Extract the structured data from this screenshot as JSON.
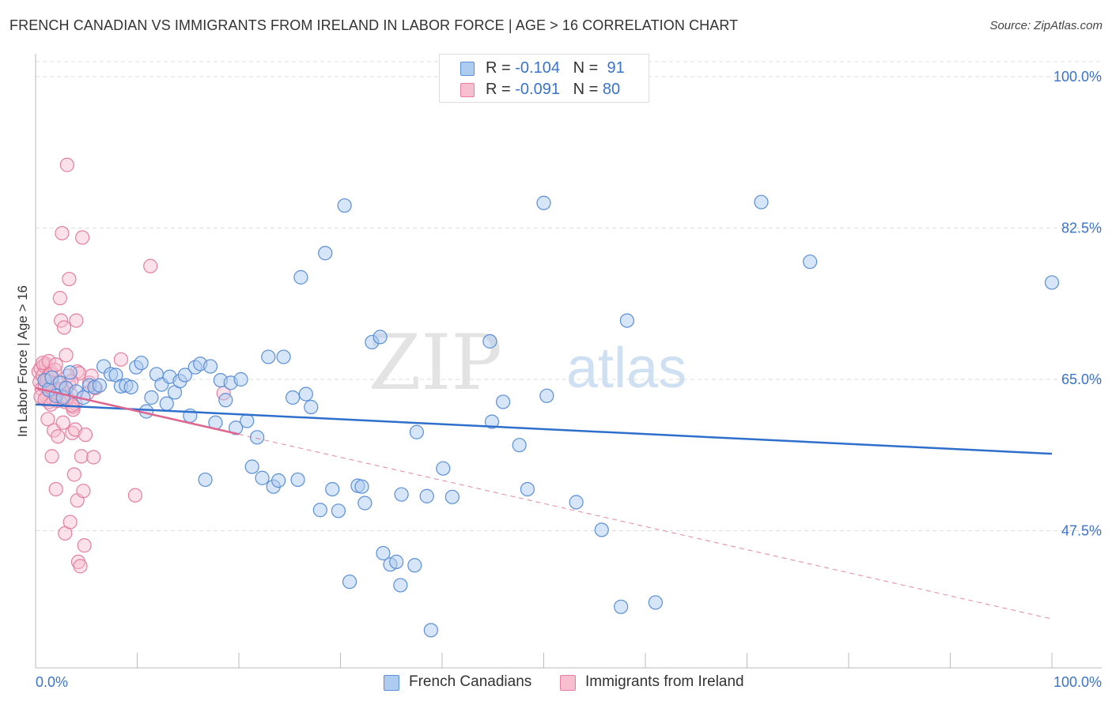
{
  "header": {
    "title": "FRENCH CANADIAN VS IMMIGRANTS FROM IRELAND IN LABOR FORCE | AGE > 16 CORRELATION CHART",
    "source": "Source: ZipAtlas.com"
  },
  "watermark": {
    "zip": "ZIP",
    "atlas": "atlas"
  },
  "legend_stats": [
    {
      "r_label": "R = ",
      "r_value": "-0.104",
      "n_label": "N = ",
      "n_value": "91"
    },
    {
      "r_label": "R = ",
      "r_value": "-0.091",
      "n_label": "N = ",
      "n_value": "80"
    }
  ],
  "bottom_legend": [
    "French Canadians",
    "Immigrants from Ireland"
  ],
  "colors": {
    "blue_fill": "#aecbf0",
    "blue_stroke": "#5b8fd6",
    "blue_line": "#2f6fcc",
    "pink_fill": "#f7bfd0",
    "pink_stroke": "#e47fa0",
    "pink_line": "#e06690",
    "grid": "#dddddd",
    "tick_label": "#3b73c8"
  },
  "chart_data": {
    "type": "scatter",
    "title": "FRENCH CANADIAN VS IMMIGRANTS FROM IRELAND IN LABOR FORCE | AGE > 16 CORRELATION CHART",
    "xlabel": "",
    "ylabel": "In Labor Force | Age > 16",
    "xlim": [
      0,
      100
    ],
    "ylim": [
      32.5,
      102
    ],
    "x_tick_labels": [
      "0.0%",
      "100.0%"
    ],
    "y_ticks": [
      47.5,
      65.0,
      82.5,
      100.0
    ],
    "y_tick_labels": [
      "47.5%",
      "65.0%",
      "82.5%",
      "100.0%"
    ],
    "grid": true,
    "series": [
      {
        "name": "French Canadians",
        "R": -0.104,
        "N": 91,
        "trend": {
          "x": [
            0,
            100
          ],
          "y": [
            62.1,
            56.4
          ]
        },
        "points": [
          [
            0.9,
            64.9
          ],
          [
            1.3,
            63.8
          ],
          [
            1.6,
            65.2
          ],
          [
            2.0,
            63.1
          ],
          [
            2.4,
            64.6
          ],
          [
            2.7,
            62.9
          ],
          [
            3.0,
            64.0
          ],
          [
            3.4,
            65.8
          ],
          [
            4.0,
            63.6
          ],
          [
            4.7,
            62.9
          ],
          [
            5.3,
            64.3
          ],
          [
            5.8,
            64.1
          ],
          [
            6.3,
            64.3
          ],
          [
            6.7,
            66.5
          ],
          [
            7.4,
            65.6
          ],
          [
            7.9,
            65.5
          ],
          [
            8.4,
            64.2
          ],
          [
            8.9,
            64.3
          ],
          [
            9.4,
            64.1
          ],
          [
            9.9,
            66.4
          ],
          [
            10.4,
            66.9
          ],
          [
            10.9,
            61.3
          ],
          [
            11.4,
            62.9
          ],
          [
            11.9,
            65.6
          ],
          [
            12.4,
            64.4
          ],
          [
            12.9,
            62.2
          ],
          [
            13.2,
            65.3
          ],
          [
            13.7,
            63.5
          ],
          [
            14.2,
            64.8
          ],
          [
            14.7,
            65.5
          ],
          [
            15.2,
            60.8
          ],
          [
            15.7,
            66.4
          ],
          [
            16.2,
            66.8
          ],
          [
            16.7,
            53.4
          ],
          [
            17.2,
            66.5
          ],
          [
            17.7,
            60.0
          ],
          [
            18.2,
            64.9
          ],
          [
            18.7,
            62.6
          ],
          [
            19.2,
            64.6
          ],
          [
            19.7,
            59.4
          ],
          [
            20.2,
            65.0
          ],
          [
            20.8,
            60.2
          ],
          [
            21.3,
            54.9
          ],
          [
            21.8,
            58.3
          ],
          [
            22.3,
            53.6
          ],
          [
            22.9,
            67.6
          ],
          [
            23.4,
            52.6
          ],
          [
            23.9,
            53.3
          ],
          [
            24.4,
            67.6
          ],
          [
            25.3,
            62.9
          ],
          [
            25.8,
            53.4
          ],
          [
            26.1,
            76.8
          ],
          [
            26.6,
            63.3
          ],
          [
            27.1,
            61.8
          ],
          [
            28.5,
            79.6
          ],
          [
            28.0,
            49.9
          ],
          [
            29.2,
            52.3
          ],
          [
            29.8,
            49.8
          ],
          [
            30.4,
            85.1
          ],
          [
            30.9,
            41.6
          ],
          [
            31.7,
            52.7
          ],
          [
            32.1,
            52.6
          ],
          [
            32.4,
            50.7
          ],
          [
            33.1,
            69.3
          ],
          [
            33.9,
            69.9
          ],
          [
            34.2,
            44.9
          ],
          [
            34.9,
            43.6
          ],
          [
            35.5,
            43.9
          ],
          [
            35.9,
            41.2
          ],
          [
            36.0,
            51.7
          ],
          [
            37.3,
            43.5
          ],
          [
            37.5,
            58.9
          ],
          [
            38.5,
            51.5
          ],
          [
            38.9,
            36.0
          ],
          [
            40.1,
            54.7
          ],
          [
            41.0,
            51.4
          ],
          [
            44.7,
            69.4
          ],
          [
            44.9,
            60.1
          ],
          [
            46.0,
            62.4
          ],
          [
            47.6,
            57.4
          ],
          [
            48.4,
            52.3
          ],
          [
            50.0,
            85.4
          ],
          [
            50.3,
            63.1
          ],
          [
            53.2,
            50.8
          ],
          [
            55.7,
            47.6
          ],
          [
            57.6,
            38.7
          ],
          [
            58.2,
            71.8
          ],
          [
            61.0,
            39.2
          ],
          [
            71.4,
            85.5
          ],
          [
            76.2,
            78.6
          ],
          [
            100.0,
            76.2
          ]
        ]
      },
      {
        "name": "Immigrants from Ireland",
        "R": -0.091,
        "N": 80,
        "trend": {
          "x": [
            0,
            100
          ],
          "y": [
            64.0,
            37.3
          ]
        },
        "trend_solid_end": 20,
        "points": [
          [
            0.3,
            65.9
          ],
          [
            0.4,
            64.7
          ],
          [
            0.5,
            66.3
          ],
          [
            0.6,
            63.9
          ],
          [
            0.7,
            65.4
          ],
          [
            0.8,
            66.6
          ],
          [
            0.9,
            64.2
          ],
          [
            1.0,
            66.8
          ],
          [
            1.1,
            62.9
          ],
          [
            1.2,
            65.2
          ],
          [
            1.3,
            62.4
          ],
          [
            1.4,
            63.6
          ],
          [
            1.5,
            65.9
          ],
          [
            1.6,
            64.5
          ],
          [
            1.7,
            62.8
          ],
          [
            1.8,
            63.3
          ],
          [
            0.5,
            63.0
          ],
          [
            0.7,
            66.9
          ],
          [
            0.9,
            62.7
          ],
          [
            1.1,
            64.9
          ],
          [
            1.3,
            67.1
          ],
          [
            1.5,
            65.6
          ],
          [
            1.7,
            63.9
          ],
          [
            1.9,
            66.1
          ],
          [
            2.1,
            62.5
          ],
          [
            2.3,
            63.8
          ],
          [
            2.5,
            64.6
          ],
          [
            2.7,
            63.0
          ],
          [
            2.9,
            62.4
          ],
          [
            3.1,
            62.6
          ],
          [
            3.3,
            64.4
          ],
          [
            3.5,
            63.2
          ],
          [
            3.7,
            61.8
          ],
          [
            3.9,
            62.2
          ],
          [
            4.1,
            65.9
          ],
          [
            4.3,
            65.7
          ],
          [
            1.2,
            60.4
          ],
          [
            1.5,
            62.1
          ],
          [
            1.6,
            56.1
          ],
          [
            1.8,
            59.1
          ],
          [
            2.0,
            52.3
          ],
          [
            2.2,
            58.4
          ],
          [
            2.4,
            74.4
          ],
          [
            2.5,
            71.8
          ],
          [
            2.6,
            81.9
          ],
          [
            2.7,
            60.0
          ],
          [
            2.8,
            71.0
          ],
          [
            2.9,
            47.2
          ],
          [
            3.0,
            67.8
          ],
          [
            3.1,
            62.9
          ],
          [
            3.2,
            65.4
          ],
          [
            3.3,
            76.6
          ],
          [
            3.4,
            48.5
          ],
          [
            3.5,
            64.8
          ],
          [
            3.6,
            58.8
          ],
          [
            3.7,
            61.5
          ],
          [
            3.8,
            54.0
          ],
          [
            3.9,
            59.2
          ],
          [
            4.0,
            71.8
          ],
          [
            4.1,
            51.0
          ],
          [
            4.2,
            43.9
          ],
          [
            4.4,
            43.4
          ],
          [
            4.5,
            56.1
          ],
          [
            4.6,
            81.4
          ],
          [
            4.7,
            52.1
          ],
          [
            4.8,
            45.8
          ],
          [
            5.3,
            64.6
          ],
          [
            5.7,
            56.0
          ],
          [
            3.1,
            89.8
          ],
          [
            4.9,
            58.6
          ],
          [
            5.5,
            65.4
          ],
          [
            5.1,
            63.4
          ],
          [
            5.9,
            64.0
          ],
          [
            8.4,
            67.3
          ],
          [
            9.8,
            51.6
          ],
          [
            11.3,
            78.1
          ],
          [
            18.5,
            63.4
          ],
          [
            2.0,
            66.7
          ],
          [
            2.6,
            63.9
          ],
          [
            3.6,
            62.0
          ]
        ]
      }
    ]
  }
}
